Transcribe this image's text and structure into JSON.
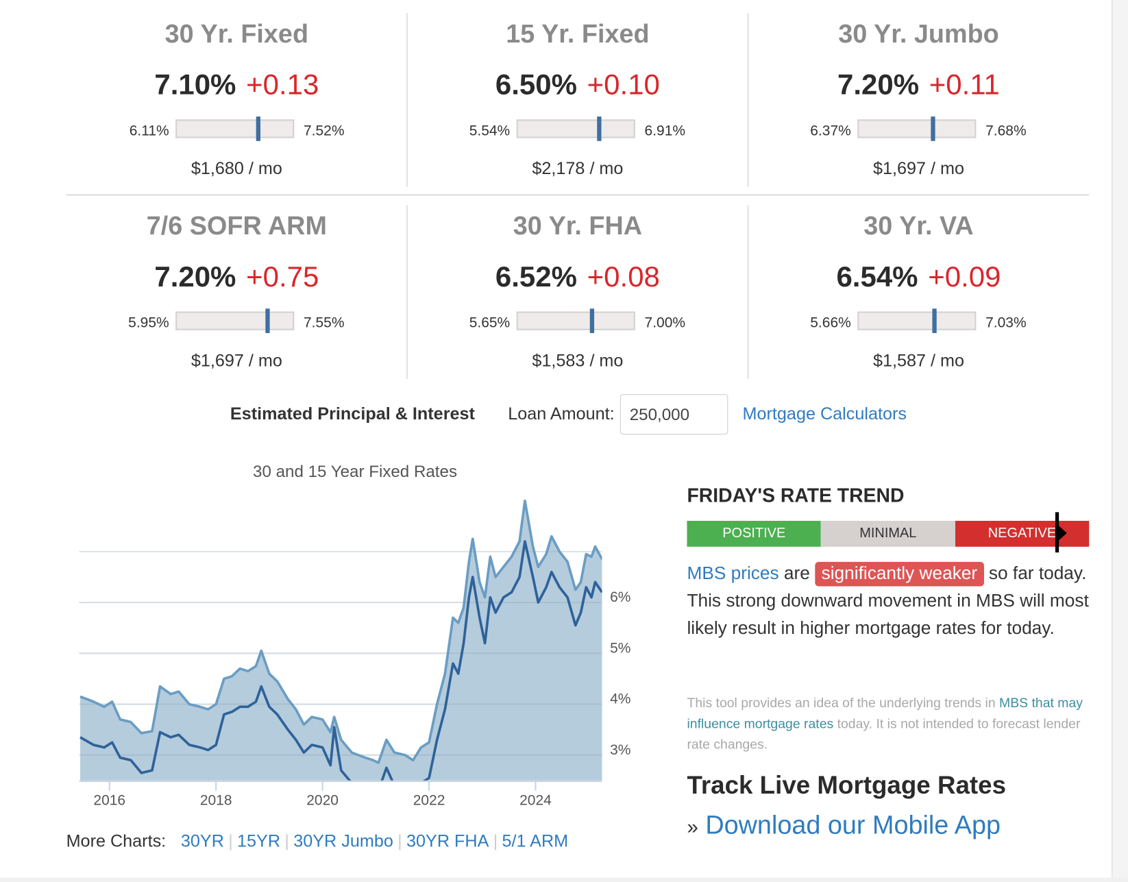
{
  "rate_cards": [
    {
      "title": "30 Yr. Fixed",
      "rate": "7.10%",
      "change": "+0.13",
      "low": "6.11%",
      "high": "7.52%",
      "position": 0.7,
      "payment": "$1,680 / mo"
    },
    {
      "title": "15 Yr. Fixed",
      "rate": "6.50%",
      "change": "+0.10",
      "low": "5.54%",
      "high": "6.91%",
      "position": 0.7,
      "payment": "$2,178 / mo"
    },
    {
      "title": "30 Yr. Jumbo",
      "rate": "7.20%",
      "change": "+0.11",
      "low": "6.37%",
      "high": "7.68%",
      "position": 0.64,
      "payment": "$1,697 / mo"
    },
    {
      "title": "7/6 SOFR ARM",
      "rate": "7.20%",
      "change": "+0.75",
      "low": "5.95%",
      "high": "7.55%",
      "position": 0.78,
      "payment": "$1,697 / mo"
    },
    {
      "title": "30 Yr. FHA",
      "rate": "6.52%",
      "change": "+0.08",
      "low": "5.65%",
      "high": "7.00%",
      "position": 0.64,
      "payment": "$1,583 / mo"
    },
    {
      "title": "30 Yr. VA",
      "rate": "6.54%",
      "change": "+0.09",
      "low": "5.66%",
      "high": "7.03%",
      "position": 0.65,
      "payment": "$1,587 / mo"
    }
  ],
  "calc": {
    "label": "Estimated Principal & Interest",
    "loan_label": "Loan Amount:",
    "loan_value": "250,000",
    "calculators_link": "Mortgage Calculators"
  },
  "chart_data": {
    "type": "area",
    "title": "30 and 15 Year Fixed Rates",
    "xlim": [
      2015.43,
      2025.25
    ],
    "ylim": [
      2.5,
      8.1
    ],
    "x_ticks": [
      "2016",
      "2018",
      "2020",
      "2022",
      "2024"
    ],
    "y_ticks": [
      "3%",
      "4%",
      "5%",
      "6%"
    ],
    "grid": true,
    "colors": {
      "line30": "#6a9dc3",
      "line15": "#2e6299",
      "fill": "#b5ccdd"
    },
    "series": [
      {
        "x": [
          2015.45,
          2015.7,
          2015.9,
          2016.05,
          2016.2,
          2016.4,
          2016.6,
          2016.8,
          2016.95,
          2017.15,
          2017.3,
          2017.5,
          2017.7,
          2017.85,
          2018.0,
          2018.15,
          2018.3,
          2018.45,
          2018.6,
          2018.75,
          2018.85,
          2019.0,
          2019.15,
          2019.35,
          2019.5,
          2019.65,
          2019.8,
          2020.0,
          2020.15,
          2020.22,
          2020.35,
          2020.55,
          2020.8,
          2020.95,
          2021.05,
          2021.2,
          2021.35,
          2021.55,
          2021.7,
          2021.85,
          2022.0,
          2022.15,
          2022.3,
          2022.45,
          2022.55,
          2022.65,
          2022.75,
          2022.82,
          2022.95,
          2023.05,
          2023.15,
          2023.25,
          2023.4,
          2023.55,
          2023.7,
          2023.8,
          2023.95,
          2024.05,
          2024.2,
          2024.3,
          2024.45,
          2024.6,
          2024.75,
          2024.85,
          2024.95,
          2025.05,
          2025.12,
          2025.25
        ],
        "values": [
          4.15,
          4.05,
          3.95,
          4.05,
          3.7,
          3.65,
          3.43,
          3.47,
          4.35,
          4.2,
          4.25,
          4.0,
          3.95,
          3.9,
          4.0,
          4.5,
          4.55,
          4.7,
          4.65,
          4.75,
          5.05,
          4.6,
          4.45,
          4.1,
          3.9,
          3.6,
          3.75,
          3.7,
          3.45,
          3.75,
          3.3,
          3.05,
          2.95,
          2.9,
          2.85,
          3.3,
          3.05,
          3.0,
          2.9,
          3.15,
          3.25,
          4.0,
          4.6,
          5.7,
          5.6,
          5.9,
          6.8,
          7.25,
          6.4,
          6.1,
          6.9,
          6.5,
          6.7,
          6.9,
          7.2,
          8.0,
          7.1,
          6.7,
          6.95,
          7.3,
          7.0,
          6.8,
          6.25,
          6.4,
          6.95,
          6.9,
          7.1,
          6.85
        ]
      },
      {
        "x": [
          2015.45,
          2015.7,
          2015.9,
          2016.05,
          2016.2,
          2016.4,
          2016.6,
          2016.8,
          2016.95,
          2017.15,
          2017.3,
          2017.5,
          2017.7,
          2017.85,
          2018.0,
          2018.15,
          2018.3,
          2018.45,
          2018.6,
          2018.75,
          2018.85,
          2019.0,
          2019.15,
          2019.35,
          2019.5,
          2019.65,
          2019.8,
          2020.0,
          2020.15,
          2020.22,
          2020.35,
          2020.55,
          2020.8,
          2020.95,
          2021.05,
          2021.2,
          2021.35,
          2021.55,
          2021.7,
          2021.85,
          2022.0,
          2022.15,
          2022.3,
          2022.45,
          2022.55,
          2022.65,
          2022.75,
          2022.82,
          2022.95,
          2023.05,
          2023.15,
          2023.25,
          2023.4,
          2023.55,
          2023.7,
          2023.8,
          2023.95,
          2024.05,
          2024.2,
          2024.3,
          2024.45,
          2024.6,
          2024.75,
          2024.85,
          2024.95,
          2025.05,
          2025.12,
          2025.25
        ],
        "values": [
          3.35,
          3.2,
          3.15,
          3.25,
          2.95,
          2.9,
          2.65,
          2.7,
          3.45,
          3.35,
          3.4,
          3.2,
          3.15,
          3.1,
          3.2,
          3.8,
          3.85,
          3.95,
          3.95,
          4.05,
          4.35,
          3.95,
          3.8,
          3.5,
          3.3,
          3.05,
          3.2,
          3.15,
          2.8,
          3.55,
          2.7,
          2.45,
          2.4,
          2.35,
          2.3,
          2.75,
          2.4,
          2.35,
          2.35,
          2.45,
          2.55,
          3.3,
          3.9,
          4.8,
          4.6,
          5.2,
          6.1,
          6.5,
          5.7,
          5.2,
          6.1,
          5.8,
          6.1,
          6.2,
          6.5,
          7.2,
          6.5,
          6.0,
          6.3,
          6.6,
          6.3,
          6.1,
          5.55,
          5.8,
          6.3,
          6.1,
          6.4,
          6.2
        ]
      }
    ]
  },
  "more_charts": {
    "label": "More Charts:",
    "links": [
      "30YR",
      "15YR",
      "30YR Jumbo",
      "30YR FHA",
      "5/1 ARM"
    ]
  },
  "trend": {
    "title": "FRIDAY'S RATE TREND",
    "segments": [
      "POSITIVE",
      "MINIMAL",
      "NEGATIVE"
    ],
    "segment_colors": [
      "#4caf50",
      "#d6d0cf",
      "#d32f2f"
    ],
    "indicator_position": 0.92,
    "text_link": "MBS prices",
    "text_are": "are",
    "badge": "significantly weaker",
    "text_rest": "so far today. This strong downward movement in MBS will most likely result in higher mortgage rates for today.",
    "note_pre": "This tool provides an idea of the underlying trends in ",
    "note_link": "MBS that may influence mortgage rates",
    "note_post": " today. It is not intended to forecast lender rate changes."
  },
  "app": {
    "heading": "Track Live Mortgage Rates",
    "prefix": "»",
    "link": "Download our Mobile App"
  }
}
